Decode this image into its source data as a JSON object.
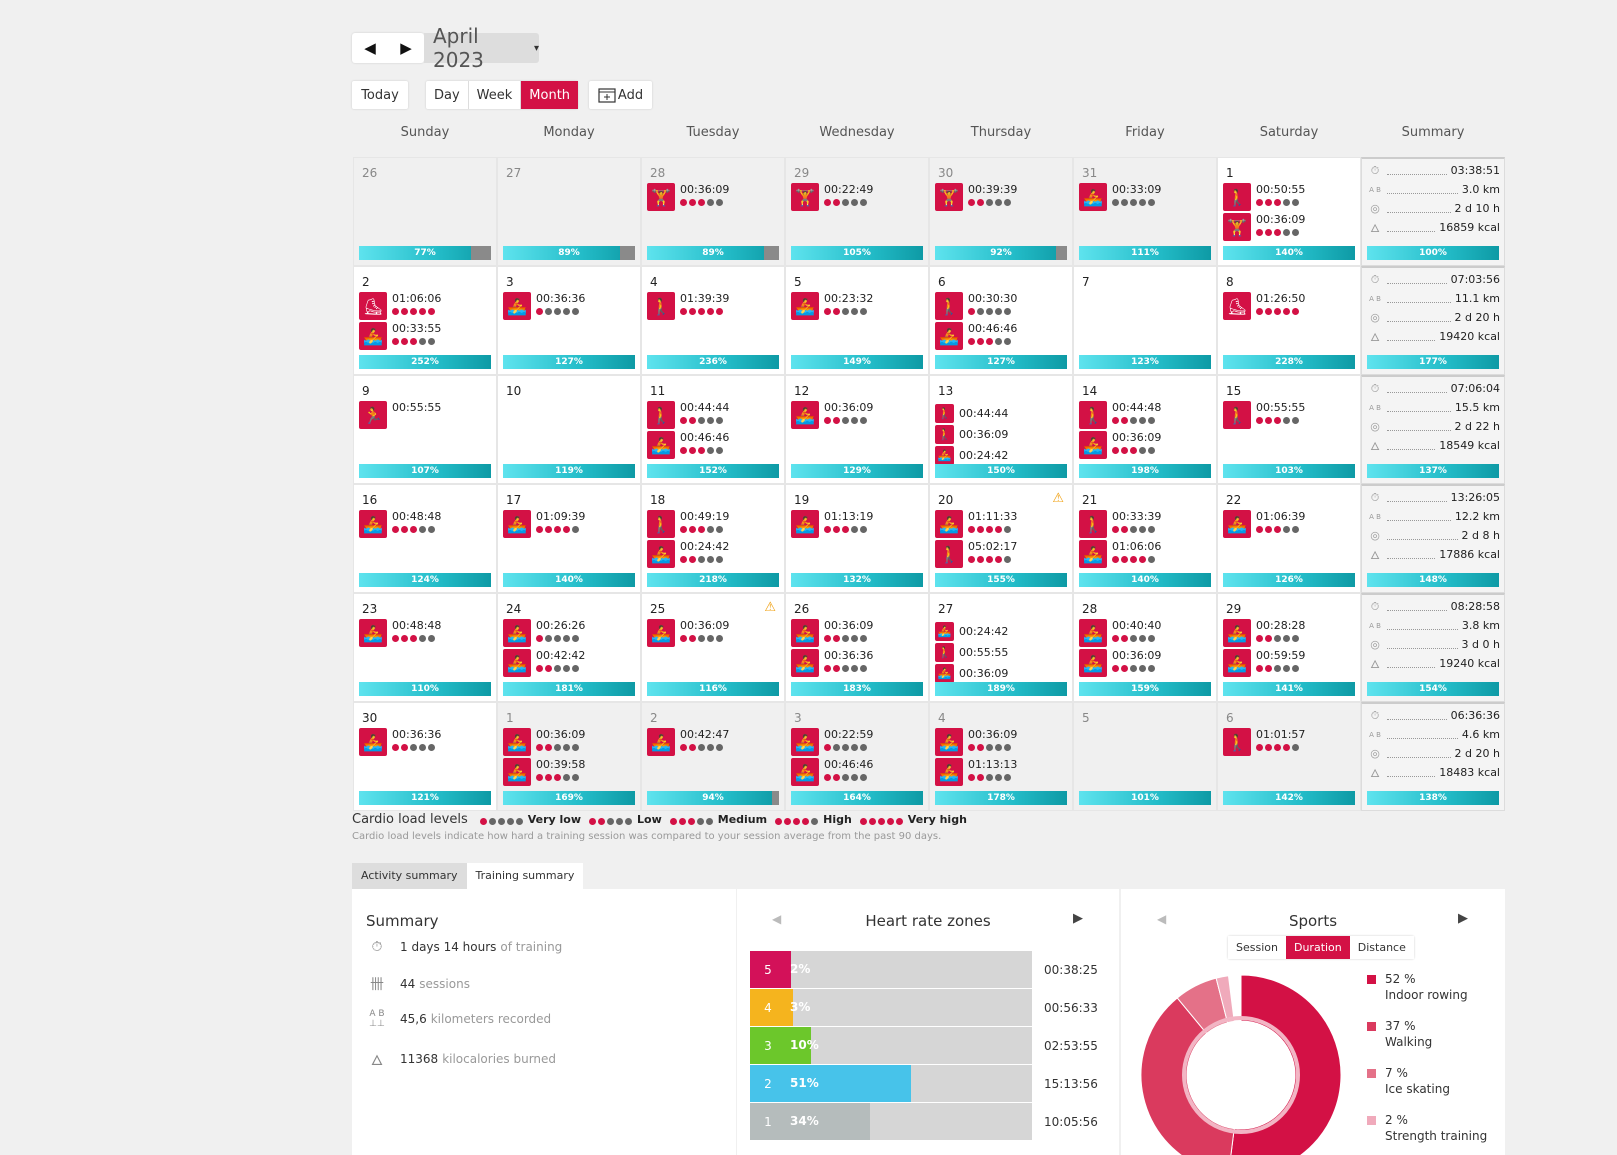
{
  "nav": {
    "prev_icon": "◀",
    "next_icon": "▶",
    "month": "April 2023",
    "dropdown_icon": "▾"
  },
  "toolbar": {
    "today": "Today",
    "day": "Day",
    "week": "Week",
    "month": "Month",
    "add": "Add",
    "add_icon": "calendar-plus-icon"
  },
  "colors": {
    "accent": "#d31145",
    "load_bar": "#23bcc8"
  },
  "weekdays": [
    "Sunday",
    "Monday",
    "Tuesday",
    "Wednesday",
    "Thursday",
    "Friday",
    "Saturday",
    "Summary"
  ],
  "weeks": [
    {
      "days": [
        {
          "d": "26",
          "other": true,
          "sessions": [],
          "load": "77%",
          "grey": 0.15
        },
        {
          "d": "27",
          "other": true,
          "sessions": [],
          "load": "89%",
          "grey": 0.11
        },
        {
          "d": "28",
          "other": true,
          "sessions": [
            {
              "t": "00:36:09",
              "lv": 3,
              "ic": "strength"
            }
          ],
          "load": "89%",
          "grey": 0.11
        },
        {
          "d": "29",
          "other": true,
          "sessions": [
            {
              "t": "00:22:49",
              "lv": 2,
              "ic": "strength"
            }
          ],
          "load": "105%"
        },
        {
          "d": "30",
          "other": true,
          "sessions": [
            {
              "t": "00:39:39",
              "lv": 2,
              "ic": "strength"
            }
          ],
          "load": "92%",
          "grey": 0.08
        },
        {
          "d": "31",
          "other": true,
          "sessions": [
            {
              "t": "00:33:09",
              "lv": 0,
              "ic": "rowing"
            }
          ],
          "load": "111%"
        },
        {
          "d": "1",
          "sessions": [
            {
              "t": "00:50:55",
              "lv": 3,
              "ic": "walking"
            },
            {
              "t": "00:36:09",
              "lv": 3,
              "ic": "strength"
            }
          ],
          "load": "140%"
        }
      ],
      "summary": {
        "time": "03:38:51",
        "dist": "3.0 km",
        "recovery": "2 d 10 h",
        "kcal": "16859 kcal",
        "load": "100%"
      }
    },
    {
      "days": [
        {
          "d": "2",
          "sessions": [
            {
              "t": "01:06:06",
              "lv": 5,
              "ic": "skating"
            },
            {
              "t": "00:33:55",
              "lv": 3,
              "ic": "rowing"
            }
          ],
          "load": "252%"
        },
        {
          "d": "3",
          "sessions": [
            {
              "t": "00:36:36",
              "lv": 1,
              "ic": "rowing"
            }
          ],
          "load": "127%"
        },
        {
          "d": "4",
          "sessions": [
            {
              "t": "01:39:39",
              "lv": 5,
              "ic": "walking"
            }
          ],
          "load": "236%"
        },
        {
          "d": "5",
          "sessions": [
            {
              "t": "00:23:32",
              "lv": 2,
              "ic": "rowing"
            }
          ],
          "load": "149%"
        },
        {
          "d": "6",
          "sessions": [
            {
              "t": "00:30:30",
              "lv": 1,
              "ic": "walking"
            },
            {
              "t": "00:46:46",
              "lv": 3,
              "ic": "rowing"
            }
          ],
          "load": "127%"
        },
        {
          "d": "7",
          "sessions": [],
          "load": "123%"
        },
        {
          "d": "8",
          "sessions": [
            {
              "t": "01:26:50",
              "lv": 5,
              "ic": "skating"
            }
          ],
          "load": "228%"
        }
      ],
      "summary": {
        "time": "07:03:56",
        "dist": "11.1 km",
        "recovery": "2 d 20 h",
        "kcal": "19420 kcal",
        "load": "177%"
      }
    },
    {
      "days": [
        {
          "d": "9",
          "sessions": [
            {
              "t": "00:55:55",
              "lv": -1,
              "ic": "other"
            }
          ],
          "load": "107%"
        },
        {
          "d": "10",
          "sessions": [],
          "load": "119%"
        },
        {
          "d": "11",
          "sessions": [
            {
              "t": "00:44:44",
              "lv": 2,
              "ic": "walking"
            },
            {
              "t": "00:46:46",
              "lv": 3,
              "ic": "rowing"
            }
          ],
          "load": "152%"
        },
        {
          "d": "12",
          "sessions": [
            {
              "t": "00:36:09",
              "lv": 2,
              "ic": "rowing"
            }
          ],
          "load": "129%"
        },
        {
          "d": "13",
          "small": true,
          "sessions": [
            {
              "t": "00:44:44",
              "ic": "walking"
            },
            {
              "t": "00:36:09",
              "ic": "walking"
            },
            {
              "t": "00:24:42",
              "ic": "rowing"
            }
          ],
          "load": "150%"
        },
        {
          "d": "14",
          "sessions": [
            {
              "t": "00:44:48",
              "lv": 2,
              "ic": "walking"
            },
            {
              "t": "00:36:09",
              "lv": 3,
              "ic": "rowing"
            }
          ],
          "load": "198%"
        },
        {
          "d": "15",
          "sessions": [
            {
              "t": "00:55:55",
              "lv": 3,
              "ic": "walking"
            }
          ],
          "load": "103%"
        }
      ],
      "summary": {
        "time": "07:06:04",
        "dist": "15.5 km",
        "recovery": "2 d 22 h",
        "kcal": "18549 kcal",
        "load": "137%"
      }
    },
    {
      "days": [
        {
          "d": "16",
          "sessions": [
            {
              "t": "00:48:48",
              "lv": 3,
              "ic": "rowing"
            }
          ],
          "load": "124%"
        },
        {
          "d": "17",
          "sessions": [
            {
              "t": "01:09:39",
              "lv": 4,
              "ic": "rowing"
            }
          ],
          "load": "140%"
        },
        {
          "d": "18",
          "sessions": [
            {
              "t": "00:49:19",
              "lv": 3,
              "ic": "walking"
            },
            {
              "t": "00:24:42",
              "lv": 2,
              "ic": "rowing"
            }
          ],
          "load": "218%"
        },
        {
          "d": "19",
          "sessions": [
            {
              "t": "01:13:19",
              "lv": 3,
              "ic": "rowing"
            }
          ],
          "load": "132%"
        },
        {
          "d": "20",
          "warn": true,
          "sessions": [
            {
              "t": "01:11:33",
              "lv": 4,
              "ic": "rowing"
            },
            {
              "t": "05:02:17",
              "lv": 4,
              "ic": "walking"
            }
          ],
          "load": "155%"
        },
        {
          "d": "21",
          "sessions": [
            {
              "t": "00:33:39",
              "lv": 2,
              "ic": "walking"
            },
            {
              "t": "01:06:06",
              "lv": 4,
              "ic": "rowing"
            }
          ],
          "load": "140%"
        },
        {
          "d": "22",
          "sessions": [
            {
              "t": "01:06:39",
              "lv": 3,
              "ic": "rowing"
            }
          ],
          "load": "126%"
        }
      ],
      "summary": {
        "time": "13:26:05",
        "dist": "12.2 km",
        "recovery": "2 d 8 h",
        "kcal": "17886 kcal",
        "load": "148%"
      }
    },
    {
      "days": [
        {
          "d": "23",
          "sessions": [
            {
              "t": "00:48:48",
              "lv": 3,
              "ic": "rowing"
            }
          ],
          "load": "110%"
        },
        {
          "d": "24",
          "sessions": [
            {
              "t": "00:26:26",
              "lv": 1,
              "ic": "rowing"
            },
            {
              "t": "00:42:42",
              "lv": 2,
              "ic": "rowing"
            }
          ],
          "load": "181%"
        },
        {
          "d": "25",
          "warn": true,
          "sessions": [
            {
              "t": "00:36:09",
              "lv": 2,
              "ic": "rowing"
            }
          ],
          "load": "116%"
        },
        {
          "d": "26",
          "sessions": [
            {
              "t": "00:36:09",
              "lv": 2,
              "ic": "rowing"
            },
            {
              "t": "00:36:36",
              "lv": 2,
              "ic": "rowing"
            }
          ],
          "load": "183%"
        },
        {
          "d": "27",
          "small": true,
          "sessions": [
            {
              "t": "00:24:42",
              "ic": "rowing"
            },
            {
              "t": "00:55:55",
              "ic": "walking"
            },
            {
              "t": "00:36:09",
              "ic": "rowing"
            }
          ],
          "load": "189%"
        },
        {
          "d": "28",
          "sessions": [
            {
              "t": "00:40:40",
              "lv": 2,
              "ic": "rowing"
            },
            {
              "t": "00:36:09",
              "lv": 2,
              "ic": "rowing"
            }
          ],
          "load": "159%"
        },
        {
          "d": "29",
          "sessions": [
            {
              "t": "00:28:28",
              "lv": 2,
              "ic": "rowing"
            },
            {
              "t": "00:59:59",
              "lv": 2,
              "ic": "rowing"
            }
          ],
          "load": "141%"
        }
      ],
      "summary": {
        "time": "08:28:58",
        "dist": "3.8 km",
        "recovery": "3 d 0 h",
        "kcal": "19240 kcal",
        "load": "154%"
      }
    },
    {
      "days": [
        {
          "d": "30",
          "sessions": [
            {
              "t": "00:36:36",
              "lv": 2,
              "ic": "rowing"
            }
          ],
          "load": "121%"
        },
        {
          "d": "1",
          "other": true,
          "sessions": [
            {
              "t": "00:36:09",
              "lv": 2,
              "ic": "rowing"
            },
            {
              "t": "00:39:58",
              "lv": 3,
              "ic": "rowing"
            }
          ],
          "load": "169%"
        },
        {
          "d": "2",
          "other": true,
          "sessions": [
            {
              "t": "00:42:47",
              "lv": 2,
              "ic": "rowing"
            }
          ],
          "load": "94%",
          "grey": 0.05
        },
        {
          "d": "3",
          "other": true,
          "sessions": [
            {
              "t": "00:22:59",
              "lv": 1,
              "ic": "rowing"
            },
            {
              "t": "00:46:46",
              "lv": 2,
              "ic": "rowing"
            }
          ],
          "load": "164%"
        },
        {
          "d": "4",
          "other": true,
          "sessions": [
            {
              "t": "00:36:09",
              "lv": 2,
              "ic": "rowing"
            },
            {
              "t": "01:13:13",
              "lv": 2,
              "ic": "rowing"
            }
          ],
          "load": "178%"
        },
        {
          "d": "5",
          "other": true,
          "sessions": [],
          "load": "101%"
        },
        {
          "d": "6",
          "other": true,
          "sessions": [
            {
              "t": "01:01:57",
              "lv": 4,
              "ic": "walking"
            }
          ],
          "load": "142%"
        }
      ],
      "summary": {
        "time": "06:36:36",
        "dist": "4.6 km",
        "recovery": "2 d 20 h",
        "kcal": "18483 kcal",
        "load": "138%"
      }
    }
  ],
  "legend": {
    "title": "Cardio load levels",
    "levels": [
      {
        "label": "Very low",
        "n": 1
      },
      {
        "label": "Low",
        "n": 2
      },
      {
        "label": "Medium",
        "n": 3
      },
      {
        "label": "High",
        "n": 4
      },
      {
        "label": "Very high",
        "n": 5
      }
    ],
    "note": "Cardio load levels indicate how hard a training session was compared to your session average from the past 90 days."
  },
  "tabs": {
    "activity": "Activity summary",
    "training": "Training summary"
  },
  "summary_panel": {
    "title": "Summary",
    "rows": [
      {
        "value": "1 days 14 hours",
        "label": "of training",
        "icon": "stopwatch-icon"
      },
      {
        "value": "44",
        "label": "sessions",
        "icon": "tally-icon"
      },
      {
        "value": "45,6",
        "label": "kilometers recorded",
        "icon": "distance-icon"
      },
      {
        "value": "11368",
        "label": "kilocalories burned",
        "icon": "flame-icon"
      }
    ]
  },
  "hr_zones": {
    "title": "Heart rate zones",
    "zones": [
      {
        "zone": "5",
        "pct": "2%",
        "frac": 0.02,
        "time": "00:38:25",
        "color": "#d31159"
      },
      {
        "zone": "4",
        "pct": "3%",
        "frac": 0.03,
        "time": "00:56:33",
        "color": "#f5b41e"
      },
      {
        "zone": "3",
        "pct": "10%",
        "frac": 0.1,
        "time": "02:53:55",
        "color": "#6cc72b"
      },
      {
        "zone": "2",
        "pct": "51%",
        "frac": 0.51,
        "time": "15:13:56",
        "color": "#47c3ea"
      },
      {
        "zone": "1",
        "pct": "34%",
        "frac": 0.34,
        "time": "10:05:56",
        "color": "#b5bcbc"
      }
    ]
  },
  "sports": {
    "title": "Sports",
    "seg": [
      "Session",
      "Duration",
      "Distance"
    ],
    "items": [
      {
        "pct": "52 %",
        "name": "Indoor rowing",
        "color": "#d31145"
      },
      {
        "pct": "37 %",
        "name": "Walking",
        "color": "#da3a5e"
      },
      {
        "pct": "7 %",
        "name": "Ice skating",
        "color": "#e47188"
      },
      {
        "pct": "2 %",
        "name": "Strength training",
        "color": "#f0aabb"
      }
    ]
  }
}
